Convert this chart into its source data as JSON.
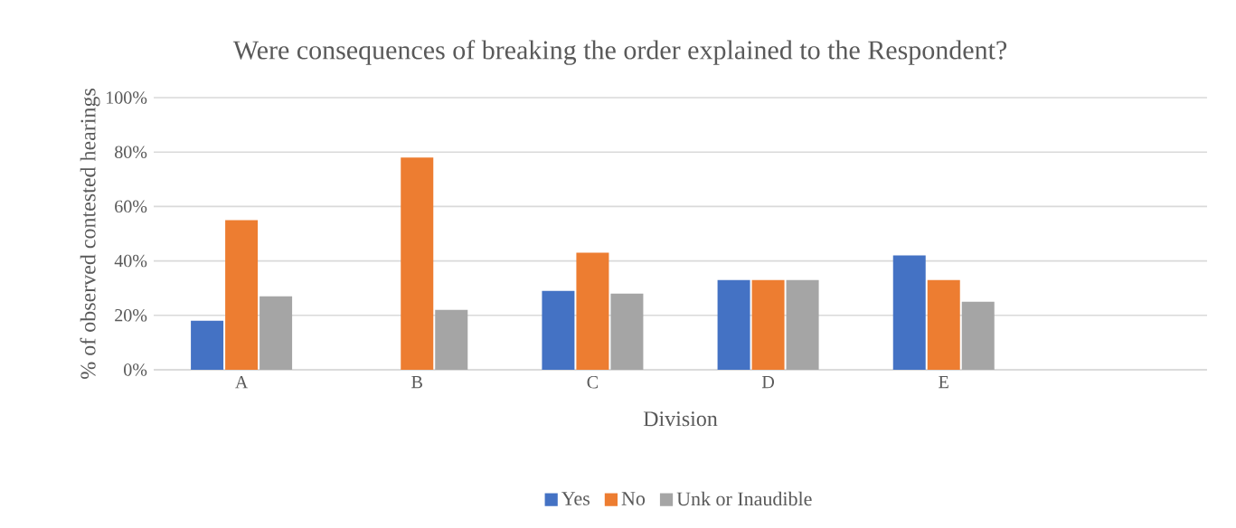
{
  "chart_data": {
    "type": "bar",
    "title": "Were consequences of breaking the order explained to the Respondent?",
    "xlabel": "Division",
    "ylabel": "% of observed contested hearings",
    "categories": [
      "A",
      "B",
      "C",
      "D",
      "E",
      null
    ],
    "series": [
      {
        "name": "Yes",
        "color": "#4472c4",
        "values": [
          18,
          0,
          29,
          33,
          42,
          null
        ]
      },
      {
        "name": "No",
        "color": "#ed7d31",
        "values": [
          55,
          78,
          43,
          33,
          33,
          null
        ]
      },
      {
        "name": "Unk or Inaudible",
        "color": "#a5a5a5",
        "values": [
          27,
          22,
          28,
          33,
          25,
          null
        ]
      }
    ],
    "ylim": [
      0,
      100
    ],
    "yticks": [
      {
        "value": 0,
        "label": "0%"
      },
      {
        "value": 20,
        "label": "20%"
      },
      {
        "value": 40,
        "label": "40%"
      },
      {
        "value": 60,
        "label": "60%"
      },
      {
        "value": 80,
        "label": "80%"
      },
      {
        "value": 100,
        "label": "100%"
      }
    ],
    "grid": "y",
    "legend": "bottom"
  }
}
